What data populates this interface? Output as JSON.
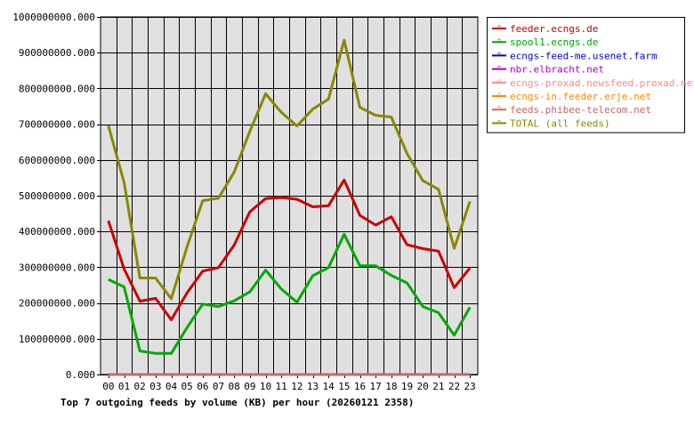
{
  "chart_data": {
    "type": "line",
    "title": "Top 7 outgoing feeds by volume (KB) per hour (20260121 2358)",
    "xlabel": "",
    "ylabel": "",
    "categories": [
      "00",
      "01",
      "02",
      "03",
      "04",
      "05",
      "06",
      "07",
      "08",
      "09",
      "10",
      "11",
      "12",
      "13",
      "14",
      "15",
      "16",
      "17",
      "18",
      "19",
      "20",
      "21",
      "22",
      "23"
    ],
    "ylim": [
      0,
      1000000000
    ],
    "yticks": [
      0,
      100000000,
      200000000,
      300000000,
      400000000,
      500000000,
      600000000,
      700000000,
      800000000,
      900000000,
      1000000000
    ],
    "ytick_labels": [
      "0.000",
      "100000000.000",
      "200000000.000",
      "300000000.000",
      "400000000.000",
      "500000000.000",
      "600000000.000",
      "700000000.000",
      "800000000.000",
      "900000000.000",
      "1000000000.000"
    ],
    "grid": true,
    "legend_position": "right",
    "plot_background": "#e0e0e0",
    "series": [
      {
        "name": "feeder.ecngs.de",
        "color": "#cc0000",
        "values": [
          430000000,
          295000000,
          205000000,
          213000000,
          153000000,
          228000000,
          289000000,
          299000000,
          362000000,
          455000000,
          492000000,
          495000000,
          490000000,
          469000000,
          472000000,
          544000000,
          445000000,
          418000000,
          441000000,
          363000000,
          352000000,
          345000000,
          243000000,
          298000000
        ]
      },
      {
        "name": "spool1.ecngs.de",
        "color": "#00aa00",
        "values": [
          266000000,
          245000000,
          66000000,
          59000000,
          59000000,
          131000000,
          197000000,
          190000000,
          206000000,
          231000000,
          292000000,
          239000000,
          202000000,
          276000000,
          299000000,
          392000000,
          304000000,
          304000000,
          277000000,
          256000000,
          190000000,
          173000000,
          110000000,
          188000000
        ]
      },
      {
        "name": "ecngs-feed-me.usenet.farm",
        "color": "#0000cc",
        "values": [
          0,
          0,
          0,
          0,
          0,
          0,
          0,
          0,
          0,
          0,
          0,
          0,
          0,
          0,
          0,
          0,
          0,
          0,
          0,
          0,
          0,
          0,
          0,
          0
        ]
      },
      {
        "name": "nbr.elbracht.net",
        "color": "#aa00cc",
        "values": [
          0,
          0,
          0,
          0,
          0,
          0,
          0,
          0,
          0,
          0,
          0,
          0,
          0,
          0,
          0,
          0,
          0,
          0,
          0,
          0,
          0,
          0,
          0,
          0
        ]
      },
      {
        "name": "ecngs-proxad.newsfeed.proxad.net",
        "color": "#ff8888",
        "values": [
          0,
          0,
          0,
          0,
          0,
          0,
          0,
          0,
          0,
          0,
          0,
          0,
          0,
          0,
          0,
          0,
          0,
          0,
          0,
          0,
          0,
          0,
          0,
          0
        ]
      },
      {
        "name": "ecngs-in.feeder.erje.net",
        "color": "#ff8800",
        "values": [
          0,
          0,
          0,
          0,
          0,
          0,
          0,
          0,
          0,
          0,
          0,
          0,
          0,
          0,
          0,
          0,
          0,
          0,
          0,
          0,
          0,
          0,
          0,
          0
        ]
      },
      {
        "name": "feeds.phibee-telecom.net",
        "color": "#cc6666",
        "values": [
          0,
          0,
          0,
          0,
          0,
          0,
          0,
          0,
          0,
          0,
          0,
          0,
          0,
          0,
          0,
          0,
          0,
          0,
          0,
          0,
          0,
          0,
          0,
          0
        ]
      },
      {
        "name": "TOTAL (all feeds)",
        "color": "#888800",
        "values": [
          696000000,
          537000000,
          270000000,
          270000000,
          212000000,
          357000000,
          486000000,
          493000000,
          566000000,
          680000000,
          785000000,
          733000000,
          695000000,
          742000000,
          770000000,
          935000000,
          747000000,
          725000000,
          720000000,
          618000000,
          542000000,
          518000000,
          353000000,
          484000000
        ]
      }
    ]
  }
}
